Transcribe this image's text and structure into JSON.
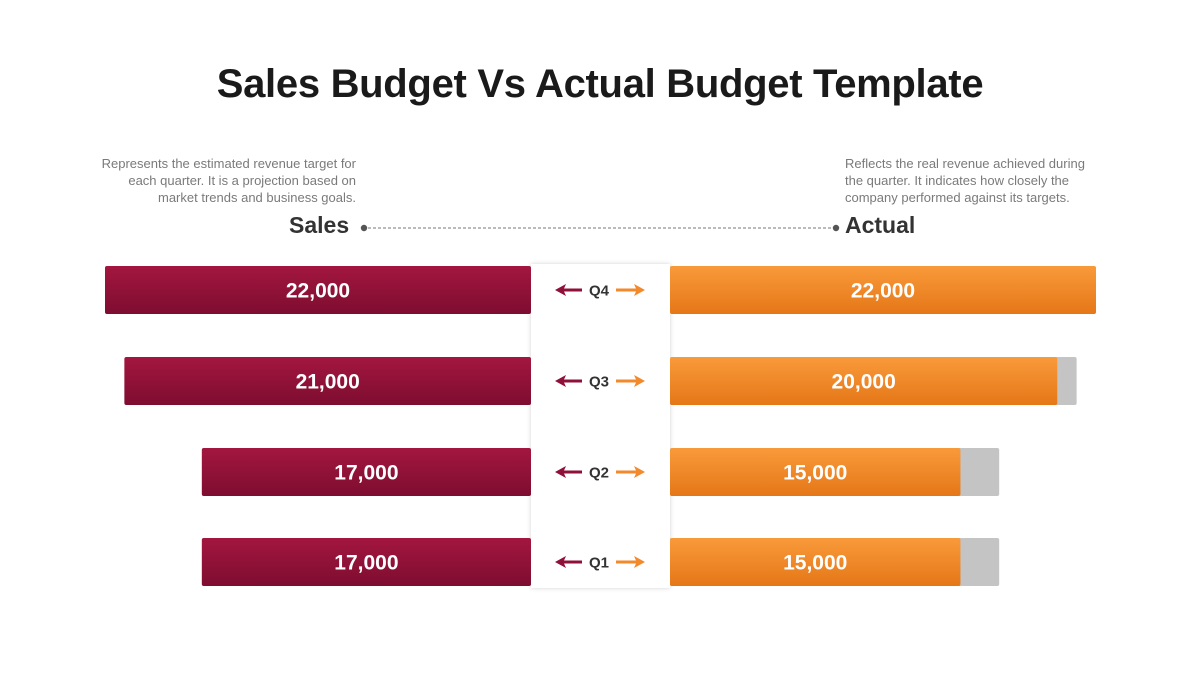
{
  "title": "Sales Budget Vs Actual Budget Template",
  "sales_description": "Represents the estimated revenue target for each quarter. It is a projection based on market trends and business goals.",
  "actual_description": "Reflects the real revenue achieved during the quarter. It indicates how closely the company performed against its targets.",
  "colors": {
    "sales_bar": "#8f1038",
    "actual_bar": "#ef8327",
    "shortfall": "#c4c4c4",
    "center_panel": "#ffffff"
  },
  "chart_data": {
    "type": "bar",
    "orientation": "horizontal, mirrored",
    "categories": [
      "Q4",
      "Q3",
      "Q2",
      "Q1"
    ],
    "series": [
      {
        "name": "Sales",
        "values": [
          22000,
          21000,
          17000,
          17000
        ],
        "labels": [
          "22,000",
          "21,000",
          "17,000",
          "17,000"
        ]
      },
      {
        "name": "Actual",
        "values": [
          22000,
          20000,
          15000,
          15000
        ],
        "labels": [
          "22,000",
          "20,000",
          "15,000",
          "15,000"
        ]
      }
    ]
  }
}
